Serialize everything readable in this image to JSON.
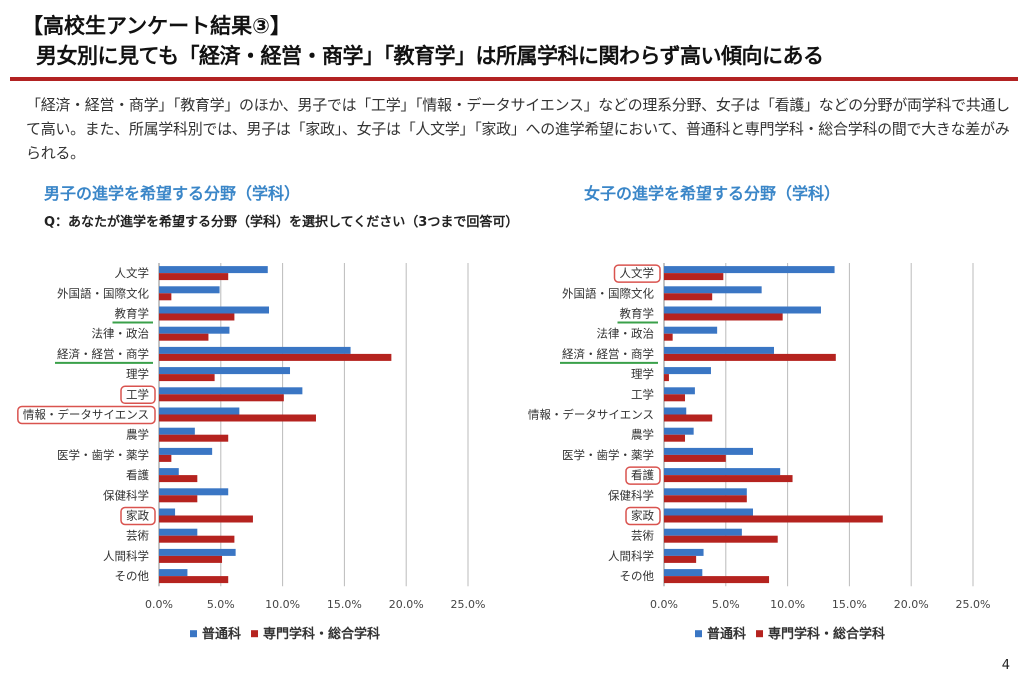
{
  "header": {
    "title_line1": "【高校生アンケート結果③】",
    "title_line2": "男女別に見ても「経済・経営・商学」「教育学」は所属学科に関わらず高い傾向にある",
    "description": "「経済・経営・商学」「教育学」のほか、男子では「工学」「情報・データサイエンス」などの理系分野、女子は「看護」などの分野が両学科で共通して高い。また、所属学科別では、男子は「家政」、女子は「人文学」「家政」への進学希望において、普通科と専門学科・総合学科の間で大きな差がみられる。",
    "question": "Q：あなたが進学を希望する分野（学科）を選択してください（3つまで回答可）"
  },
  "page_number": "4",
  "colors": {
    "series1": "#3a76c4",
    "series2": "#b5231f",
    "title_blue": "#3a86c8",
    "rule_red": "#b22222",
    "underline_green": "#3aa04a",
    "box_red": "#d9534f"
  },
  "chart_data": [
    {
      "type": "bar",
      "orientation": "horizontal",
      "title": "男子の進学を希望する分野（学科）",
      "categories": [
        "人文学",
        "外国語・国際文化",
        "教育学",
        "法律・政治",
        "経済・経営・商学",
        "理学",
        "工学",
        "情報・データサイエンス",
        "農学",
        "医学・歯学・薬学",
        "看護",
        "保健科学",
        "家政",
        "芸術",
        "人間科学",
        "その他"
      ],
      "highlights": {
        "green-underline": [
          "教育学",
          "経済・経営・商学"
        ],
        "red-box": [
          "工学",
          "情報・データサイエンス",
          "家政"
        ]
      },
      "series": [
        {
          "name": "普通科",
          "values": [
            8.8,
            4.9,
            8.9,
            5.7,
            15.5,
            10.6,
            11.6,
            6.5,
            2.9,
            4.3,
            1.6,
            5.6,
            1.3,
            3.1,
            6.2,
            2.3
          ]
        },
        {
          "name": "専門学科・総合学科",
          "values": [
            5.6,
            1.0,
            6.1,
            4.0,
            18.8,
            4.5,
            10.1,
            12.7,
            5.6,
            1.0,
            3.1,
            3.1,
            7.6,
            6.1,
            5.1,
            5.6
          ]
        }
      ],
      "xlim": [
        0,
        25
      ],
      "xticks": [
        "0.0%",
        "5.0%",
        "10.0%",
        "15.0%",
        "20.0%",
        "25.0%"
      ],
      "grid": true,
      "legend": "bottom"
    },
    {
      "type": "bar",
      "orientation": "horizontal",
      "title": "女子の進学を希望する分野（学科）",
      "categories": [
        "人文学",
        "外国語・国際文化",
        "教育学",
        "法律・政治",
        "経済・経営・商学",
        "理学",
        "工学",
        "情報・データサイエンス",
        "農学",
        "医学・歯学・薬学",
        "看護",
        "保健科学",
        "家政",
        "芸術",
        "人間科学",
        "その他"
      ],
      "highlights": {
        "green-underline": [
          "教育学",
          "経済・経営・商学"
        ],
        "red-box": [
          "人文学",
          "看護",
          "家政"
        ]
      },
      "series": [
        {
          "name": "普通科",
          "values": [
            13.8,
            7.9,
            12.7,
            4.3,
            8.9,
            3.8,
            2.5,
            1.8,
            2.4,
            7.2,
            9.4,
            6.7,
            7.2,
            6.3,
            3.2,
            3.1
          ]
        },
        {
          "name": "専門学科・総合学科",
          "values": [
            4.8,
            3.9,
            9.6,
            0.7,
            13.9,
            0.4,
            1.7,
            3.9,
            1.7,
            5.0,
            10.4,
            6.7,
            17.7,
            9.2,
            2.6,
            8.5
          ]
        }
      ],
      "xlim": [
        0,
        25
      ],
      "xticks": [
        "0.0%",
        "5.0%",
        "10.0%",
        "15.0%",
        "20.0%",
        "25.0%"
      ],
      "grid": true,
      "legend": "bottom"
    }
  ]
}
